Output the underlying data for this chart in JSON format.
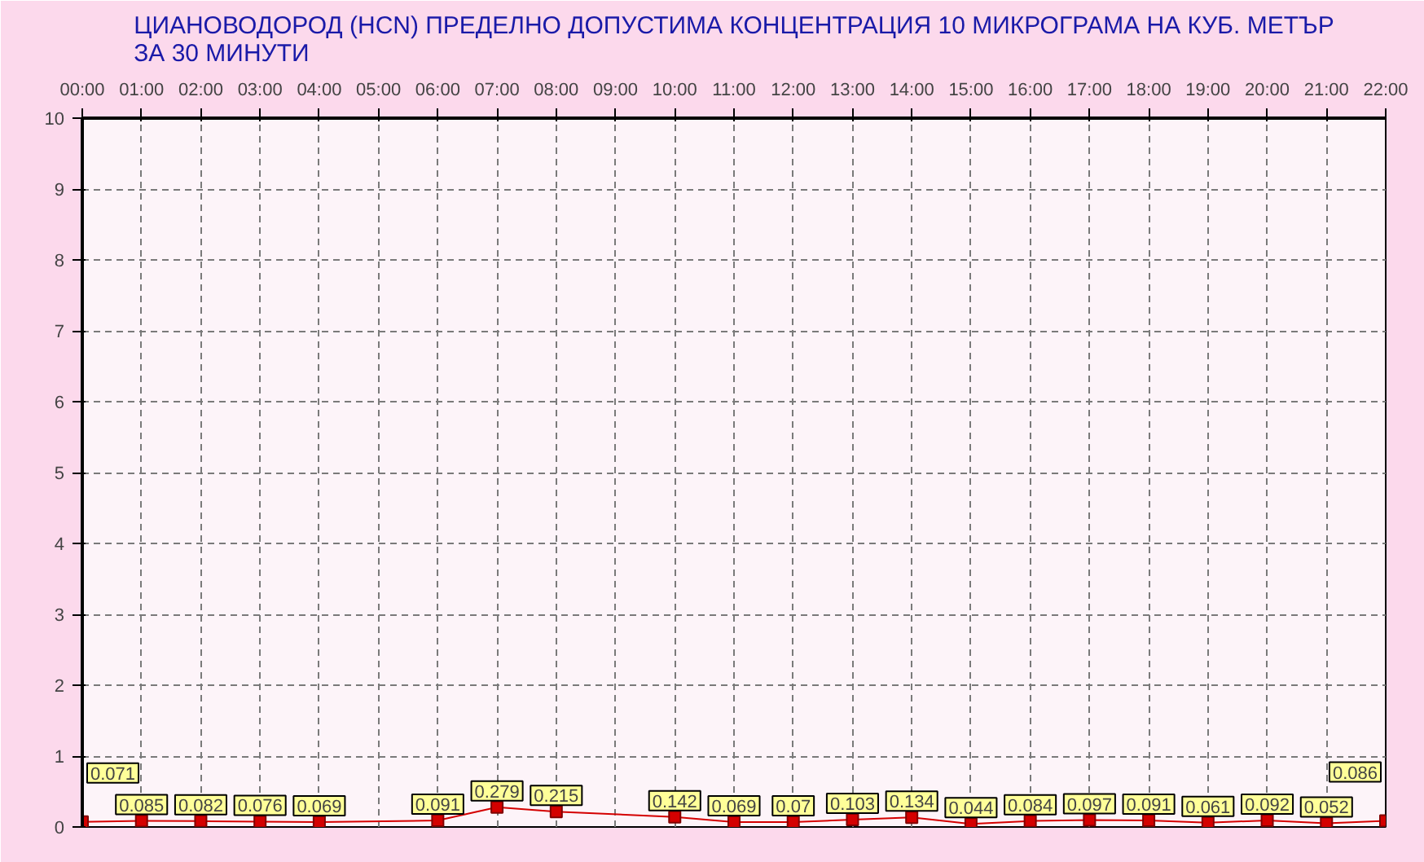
{
  "chart_data": {
    "type": "line",
    "title": "ЦИАНОВОДОРОД (HCN) ПРЕДЕЛНО ДОПУСТИМА КОНЦЕНТРАЦИЯ 10 МИКРОГРАМА НА КУБ. МЕТЪР ЗА 30 МИНУТИ",
    "x": [
      0,
      1,
      2,
      3,
      4,
      6,
      7,
      8,
      10,
      11,
      12,
      13,
      14,
      15,
      16,
      17,
      18,
      19,
      20,
      21,
      22
    ],
    "series": [
      {
        "color": "#d40000",
        "values": [
          0.071,
          0.085,
          0.082,
          0.076,
          0.069,
          0.091,
          0.279,
          0.215,
          0.142,
          0.069,
          0.07,
          0.103,
          0.134,
          0.044,
          0.084,
          0.097,
          0.091,
          0.061,
          0.092,
          0.052,
          0.086
        ]
      }
    ],
    "xlim": [
      0,
      22
    ],
    "xticks": [
      {
        "value": 0,
        "label": "00:00"
      },
      {
        "value": 1,
        "label": "01:00"
      },
      {
        "value": 2,
        "label": "02:00"
      },
      {
        "value": 3,
        "label": "03:00"
      },
      {
        "value": 4,
        "label": "04:00"
      },
      {
        "value": 5,
        "label": "05:00"
      },
      {
        "value": 6,
        "label": "06:00"
      },
      {
        "value": 7,
        "label": "07:00"
      },
      {
        "value": 8,
        "label": "08:00"
      },
      {
        "value": 9,
        "label": "09:00"
      },
      {
        "value": 10,
        "label": "10:00"
      },
      {
        "value": 11,
        "label": "11:00"
      },
      {
        "value": 12,
        "label": "12:00"
      },
      {
        "value": 13,
        "label": "13:00"
      },
      {
        "value": 14,
        "label": "14:00"
      },
      {
        "value": 15,
        "label": "15:00"
      },
      {
        "value": 16,
        "label": "16:00"
      },
      {
        "value": 17,
        "label": "17:00"
      },
      {
        "value": 18,
        "label": "18:00"
      },
      {
        "value": 19,
        "label": "19:00"
      },
      {
        "value": 20,
        "label": "20:00"
      },
      {
        "value": 21,
        "label": "21:00"
      },
      {
        "value": 22,
        "label": "22:00"
      }
    ],
    "ylim": [
      0,
      10
    ],
    "yticks": [
      0,
      1,
      2,
      3,
      4,
      5,
      6,
      7,
      8,
      9,
      10
    ],
    "grid": true,
    "marker": "square",
    "line_style": "solid",
    "data_labels": true
  }
}
